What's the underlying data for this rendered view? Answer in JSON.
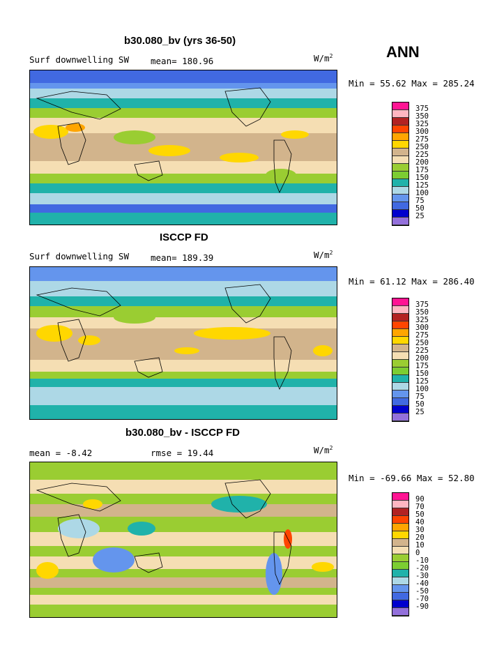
{
  "header": {
    "season": "ANN"
  },
  "panels": [
    {
      "title": "b30.080_bv (yrs 36-50)",
      "left_label": "Surf downwelling SW",
      "center_label": "mean= 180.96",
      "units": "W/m",
      "units_exp": "2",
      "minmax": "Min =  55.62 Max = 285.24",
      "legend_levels": [
        "375",
        "350",
        "325",
        "300",
        "275",
        "250",
        "225",
        "200",
        "175",
        "150",
        "125",
        "100",
        "75",
        "50",
        "25"
      ],
      "legend_colors": [
        "#ff1493",
        "#ffb6c1",
        "#b22222",
        "#ff4500",
        "#ffa500",
        "#ffd700",
        "#d2b48c",
        "#f5deb3",
        "#9acd32",
        "#7ccd32",
        "#20b2aa",
        "#add8e6",
        "#6495ed",
        "#4169e1",
        "#0000cd",
        "#9370db"
      ]
    },
    {
      "title": "ISCCP FD",
      "left_label": "Surf downwelling SW",
      "center_label": "mean= 189.39",
      "units": "W/m",
      "units_exp": "2",
      "minmax": "Min =  61.12 Max = 286.40",
      "legend_levels": [
        "375",
        "350",
        "325",
        "300",
        "275",
        "250",
        "225",
        "200",
        "175",
        "150",
        "125",
        "100",
        "75",
        "50",
        "25"
      ],
      "legend_colors": [
        "#ff1493",
        "#ffb6c1",
        "#b22222",
        "#ff4500",
        "#ffa500",
        "#ffd700",
        "#d2b48c",
        "#f5deb3",
        "#9acd32",
        "#7ccd32",
        "#20b2aa",
        "#add8e6",
        "#6495ed",
        "#4169e1",
        "#0000cd",
        "#9370db"
      ]
    },
    {
      "title": "b30.080_bv - ISCCP FD",
      "left_label": "mean =  -8.42",
      "center_label": "rmse =  19.44",
      "units": "W/m",
      "units_exp": "2",
      "minmax": "Min = -69.66 Max =  52.80",
      "legend_levels": [
        "90",
        "70",
        "50",
        "40",
        "30",
        "20",
        "10",
        "0",
        "-10",
        "-20",
        "-30",
        "-40",
        "-50",
        "-70",
        "-90"
      ],
      "legend_colors": [
        "#ff1493",
        "#ffb6c1",
        "#b22222",
        "#ff4500",
        "#ffa500",
        "#ffd700",
        "#d2b48c",
        "#f5deb3",
        "#9acd32",
        "#7ccd32",
        "#20b2aa",
        "#add8e6",
        "#6495ed",
        "#4169e1",
        "#0000cd",
        "#9370db"
      ]
    }
  ]
}
